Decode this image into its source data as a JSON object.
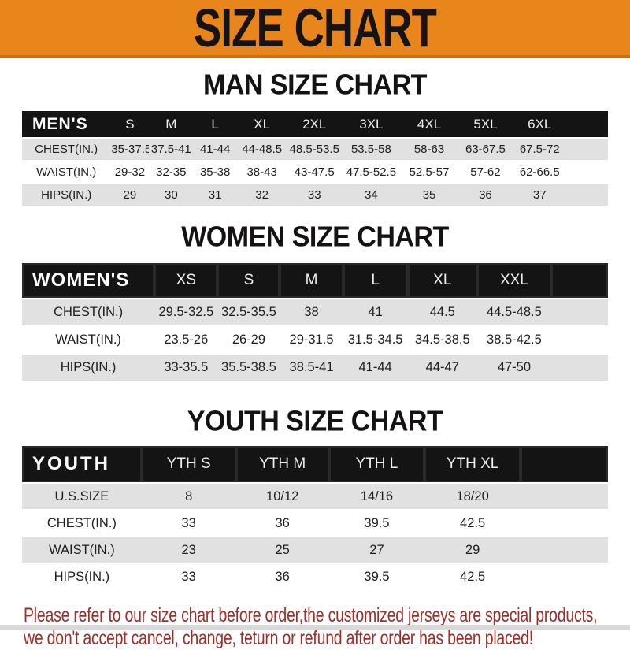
{
  "banner": {
    "title": "SIZE CHART",
    "bg_color": "#E8861C",
    "text_color": "#171313"
  },
  "sections": [
    {
      "heading": "MAN SIZE CHART",
      "header_label": "MEN'S",
      "columns": [
        "S",
        "M",
        "L",
        "XL",
        "2XL",
        "3XL",
        "4XL",
        "5XL",
        "6XL"
      ],
      "rows": [
        {
          "label": "CHEST(IN.)",
          "values": [
            "35-37.5",
            "37.5-41",
            "41-44",
            "44-48.5",
            "48.5-53.5",
            "53.5-58",
            "58-63",
            "63-67.5",
            "67.5-72"
          ]
        },
        {
          "label": "WAIST(IN.)",
          "values": [
            "29-32",
            "32-35",
            "35-38",
            "38-43",
            "43-47.5",
            "47.5-52.5",
            "52.5-57",
            "57-62",
            "62-66.5"
          ]
        },
        {
          "label": "HIPS(IN.)",
          "values": [
            "29",
            "30",
            "31",
            "32",
            "33",
            "34",
            "35",
            "36",
            "37"
          ]
        }
      ]
    },
    {
      "heading": "WOMEN SIZE CHART",
      "header_label": "WOMEN'S",
      "columns": [
        "XS",
        "S",
        "M",
        "L",
        "XL",
        "XXL"
      ],
      "rows": [
        {
          "label": "CHEST(IN.)",
          "values": [
            "29.5-32.5",
            "32.5-35.5",
            "38",
            "41",
            "44.5",
            "44.5-48.5"
          ]
        },
        {
          "label": "WAIST(IN.)",
          "values": [
            "23.5-26",
            "26-29",
            "29-31.5",
            "31.5-34.5",
            "34.5-38.5",
            "38.5-42.5"
          ]
        },
        {
          "label": "HIPS(IN.)",
          "values": [
            "33-35.5",
            "35.5-38.5",
            "38.5-41",
            "41-44",
            "44-47",
            "47-50"
          ]
        }
      ]
    },
    {
      "heading": "YOUTH SIZE CHART",
      "header_label": "YOUTH",
      "columns": [
        "YTH S",
        "YTH M",
        "YTH L",
        "YTH XL"
      ],
      "rows": [
        {
          "label": "U.S.SIZE",
          "values": [
            "8",
            "10/12",
            "14/16",
            "18/20"
          ]
        },
        {
          "label": "CHEST(IN.)",
          "values": [
            "33",
            "36",
            "39.5",
            "42.5"
          ]
        },
        {
          "label": "WAIST(IN.)",
          "values": [
            "23",
            "25",
            "27",
            "29"
          ]
        },
        {
          "label": "HIPS(IN.)",
          "values": [
            "33",
            "36",
            "39.5",
            "42.5"
          ]
        }
      ]
    }
  ],
  "disclaimer": {
    "line1": "Please refer to our size chart before order,the customized jerseys are special products,",
    "line2": "we don't accept cancel, change, teturn or refund after order has been placed!",
    "color": "#9E2F28"
  },
  "stripe_color": "#E1E1E1"
}
